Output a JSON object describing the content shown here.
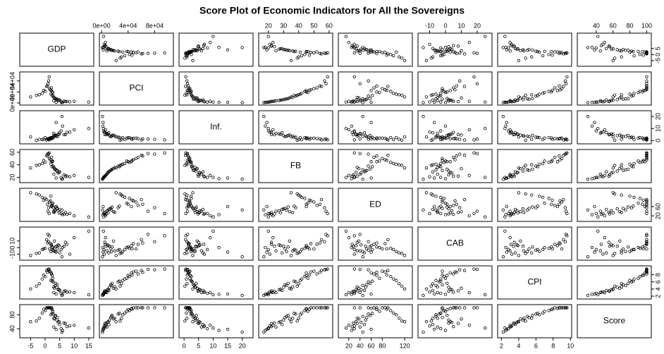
{
  "chart_data": {
    "type": "scatter_matrix",
    "title": "Score Plot of Economic Indicators for All the Sovereigns",
    "color": "#000000",
    "variables": [
      {
        "name": "GDP",
        "lim": [
          -8,
          16
        ],
        "xticks": [
          -5,
          0,
          5,
          10,
          15
        ],
        "yticks": [
          -5,
          0,
          5
        ],
        "values": [
          2.1,
          1.5,
          3.0,
          5.5,
          -2.0,
          7.0,
          0.5,
          4.0,
          2.5,
          -5.0,
          6.0,
          3.5,
          1.0,
          2.8,
          8.5,
          -1.0,
          4.5,
          1.8,
          3.2,
          10.0,
          0.0,
          5.0,
          2.2,
          3.8,
          -3.0,
          6.5,
          1.2,
          4.2,
          2.6,
          15.0,
          3.0,
          0.8,
          5.8,
          2.0,
          4.8,
          -0.5,
          3.6,
          7.5,
          1.4,
          2.4
        ]
      },
      {
        "name": "PCI",
        "lim": [
          0,
          105000
        ],
        "xticks": [
          {
            "value": 0,
            "label": "0e+00"
          },
          {
            "value": 40000,
            "label": "4e+04"
          },
          {
            "value": 80000,
            "label": "8e+04"
          }
        ],
        "yticks": [
          {
            "value": 0,
            "label": "0e+00"
          },
          {
            "value": 40000,
            "label": "4e+04"
          },
          {
            "value": 80000,
            "label": "8e+04"
          }
        ],
        "values": [
          45000,
          52000,
          8000,
          3500,
          30000,
          5000,
          60000,
          12000,
          40000,
          22000,
          2000,
          15000,
          70000,
          25000,
          4000,
          35000,
          9000,
          48000,
          18000,
          6000,
          42000,
          11000,
          55000,
          2500,
          28000,
          7000,
          80000,
          14000,
          38000,
          3000,
          20000,
          62000,
          1500,
          32000,
          10000,
          46000,
          16000,
          5500,
          95000,
          27000
        ]
      },
      {
        "name": "Inf.",
        "lim": [
          -1,
          23
        ],
        "xticks": [
          0,
          5,
          10,
          15,
          20
        ],
        "yticks": [
          0,
          10,
          20
        ],
        "values": [
          1.5,
          2.0,
          6.0,
          8.0,
          1.0,
          5.0,
          0.5,
          4.0,
          2.2,
          3.0,
          12,
          3.5,
          1.2,
          2.8,
          7.0,
          0.8,
          5.5,
          1.8,
          4.5,
          9.0,
          2.5,
          6.5,
          1.6,
          15,
          0.3,
          4.8,
          1.0,
          3.2,
          2.0,
          10,
          3.8,
          1.4,
          20,
          2.4,
          5.2,
          1.1,
          4.2,
          6.8,
          0.6,
          2.6
        ]
      },
      {
        "name": "FB",
        "lim": [
          15,
          61
        ],
        "xticks": [
          20,
          30,
          40,
          50,
          60
        ],
        "yticks": [
          20,
          40,
          60
        ],
        "values": [
          45,
          50,
          25,
          20,
          40,
          22,
          55,
          30,
          45,
          35,
          18,
          32,
          58,
          38,
          21,
          42,
          27,
          48,
          34,
          23,
          44,
          29,
          52,
          19,
          39,
          24,
          57,
          31,
          46,
          20,
          36,
          54,
          17,
          41,
          28,
          47,
          33,
          22,
          59,
          37
        ]
      },
      {
        "name": "ED",
        "lim": [
          5,
          130
        ],
        "xticks": [
          20,
          40,
          60,
          80,
          120
        ],
        "yticks": [
          20,
          60
        ],
        "values": [
          60,
          80,
          40,
          30,
          110,
          35,
          90,
          50,
          70,
          120,
          25,
          45,
          40,
          55,
          30,
          100,
          42,
          85,
          38,
          20,
          95,
          48,
          65,
          60,
          115,
          28,
          55,
          52,
          75,
          15,
          35,
          70,
          45,
          105,
          33,
          88,
          58,
          26,
          30,
          62
        ]
      },
      {
        "name": "CAB",
        "lim": [
          -16,
          28
        ],
        "xticks": [
          -10,
          0,
          10,
          20
        ],
        "yticks": [
          -10,
          0,
          10
        ],
        "values": [
          3,
          -2,
          -5,
          -3,
          -8,
          8,
          12,
          2,
          1,
          -12,
          0,
          -6,
          20,
          -4,
          -10,
          -3,
          4,
          6,
          10,
          15,
          -1,
          -8,
          5,
          -7,
          -9,
          2,
          9,
          -2,
          0,
          25,
          -5,
          7,
          -14,
          -6,
          3,
          -2,
          1,
          5,
          18,
          -3
        ]
      },
      {
        "name": "CPI",
        "lim": [
          1.8,
          9.9
        ],
        "xticks": [
          2,
          4,
          6,
          8,
          10
        ],
        "yticks": [
          2,
          4,
          6,
          8
        ],
        "values": [
          8.5,
          9.0,
          3.0,
          2.8,
          5.5,
          3.5,
          9.2,
          4.5,
          7.8,
          4.0,
          2.5,
          5.0,
          9.5,
          6.0,
          3.2,
          6.8,
          3.8,
          8.8,
          4.2,
          3.0,
          7.5,
          3.6,
          8.2,
          2.6,
          4.8,
          3.4,
          9.4,
          5.2,
          7.0,
          2.4,
          4.6,
          8.7,
          2.2,
          6.4,
          3.9,
          7.9,
          5.6,
          3.1,
          9.6,
          6.2
        ]
      },
      {
        "name": "Score",
        "lim": [
          20,
          103
        ],
        "xticks": [
          40,
          60,
          80,
          100
        ],
        "yticks": [
          40,
          80
        ],
        "values": [
          98,
          100,
          45,
          40,
          70,
          55,
          100,
          65,
          95,
          60,
          35,
          75,
          100,
          82,
          48,
          85,
          58,
          100,
          68,
          50,
          92,
          52,
          100,
          38,
          62,
          56,
          100,
          72,
          90,
          42,
          70,
          100,
          30,
          80,
          60,
          96,
          78,
          46,
          100,
          84
        ]
      }
    ]
  }
}
